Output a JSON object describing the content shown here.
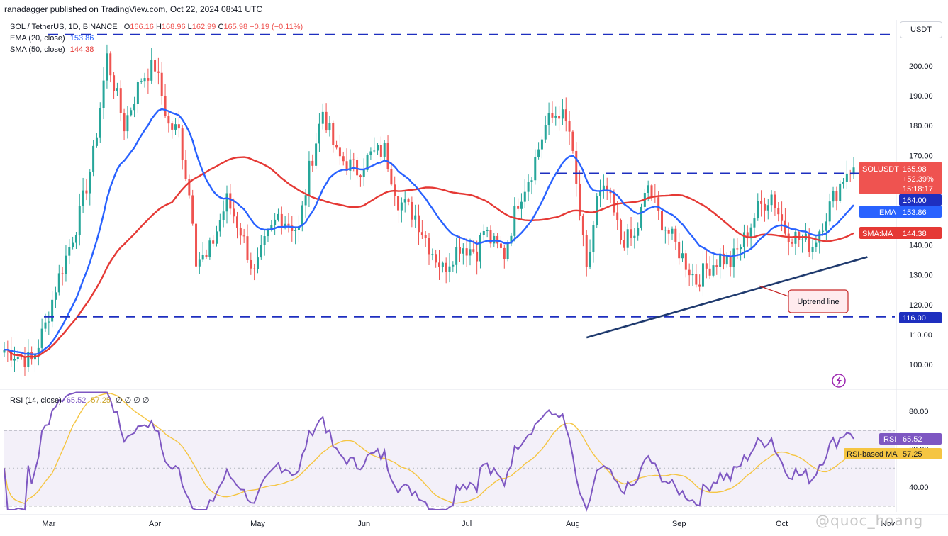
{
  "header": {
    "published_by": "ranadagger published on TradingView.com, Oct 22, 2024 08:41 UTC"
  },
  "legend": {
    "symbol": "SOL / TetherUS, 1D, BINANCE",
    "ohlc": {
      "o_label": "O",
      "o": "166.16",
      "h_label": "H",
      "h": "168.96",
      "l_label": "L",
      "l": "162.99",
      "c_label": "C",
      "c": "165.98",
      "change": "−0.19 (−0.11%)"
    },
    "ema": {
      "label": "EMA (20, close)",
      "value": "153.86"
    },
    "sma": {
      "label": "SMA (50, close)",
      "value": "144.38"
    },
    "rsi": {
      "label": "RSI (14, close)",
      "value": "65.52",
      "ma_value": "57.25",
      "tail": "∅ ∅ ∅ ∅"
    }
  },
  "currency_button": "USDT",
  "colors": {
    "up": "#26a69a",
    "down": "#ef5350",
    "ema": "#2962ff",
    "sma": "#e53935",
    "level": "#1e2fbf",
    "trend": "#1f3a6e",
    "rsi": "#7e57c2",
    "rsi_ma": "#f5c542",
    "axis_text": "#131722"
  },
  "chart_data": [
    {
      "type": "candlestick",
      "title": "SOL / TetherUS, 1D, BINANCE",
      "ylim": [
        95,
        210
      ],
      "y_ticks": [
        "100.00",
        "110.00",
        "120.00",
        "130.00",
        "140.00",
        "150.00",
        "160.00",
        "170.00",
        "180.00",
        "190.00",
        "200.00"
      ],
      "x_ticks": [
        "Mar",
        "Apr",
        "May",
        "Jun",
        "Jul",
        "Aug",
        "Sep",
        "Oct",
        "Nov"
      ],
      "x_range": [
        "2024-02-17",
        "2024-11-03"
      ],
      "start_date": "2024-02-17",
      "price_anchors": [
        [
          "2024-02-17",
          105
        ],
        [
          "2024-02-25",
          101
        ],
        [
          "2024-02-29",
          113
        ],
        [
          "2024-03-03",
          126
        ],
        [
          "2024-03-06",
          136
        ],
        [
          "2024-03-10",
          150
        ],
        [
          "2024-03-14",
          170
        ],
        [
          "2024-03-18",
          203
        ],
        [
          "2024-03-23",
          180
        ],
        [
          "2024-03-28",
          196
        ],
        [
          "2024-04-01",
          200
        ],
        [
          "2024-04-05",
          180
        ],
        [
          "2024-04-08",
          178
        ],
        [
          "2024-04-12",
          150
        ],
        [
          "2024-04-13",
          136
        ],
        [
          "2024-04-16",
          135
        ],
        [
          "2024-04-22",
          155
        ],
        [
          "2024-04-26",
          145
        ],
        [
          "2024-04-30",
          130
        ],
        [
          "2024-05-03",
          140
        ],
        [
          "2024-05-07",
          150
        ],
        [
          "2024-05-13",
          145
        ],
        [
          "2024-05-16",
          165
        ],
        [
          "2024-05-20",
          185
        ],
        [
          "2024-05-24",
          170
        ],
        [
          "2024-05-30",
          165
        ],
        [
          "2024-06-03",
          170
        ],
        [
          "2024-06-07",
          172
        ],
        [
          "2024-06-11",
          155
        ],
        [
          "2024-06-16",
          150
        ],
        [
          "2024-06-20",
          140
        ],
        [
          "2024-06-24",
          132
        ],
        [
          "2024-06-29",
          140
        ],
        [
          "2024-07-04",
          138
        ],
        [
          "2024-07-06",
          145
        ],
        [
          "2024-07-09",
          140
        ],
        [
          "2024-07-12",
          137
        ],
        [
          "2024-07-16",
          155
        ],
        [
          "2024-07-20",
          165
        ],
        [
          "2024-07-24",
          180
        ],
        [
          "2024-07-28",
          185
        ],
        [
          "2024-07-31",
          178
        ],
        [
          "2024-08-03",
          150
        ],
        [
          "2024-08-05",
          130
        ],
        [
          "2024-08-08",
          155
        ],
        [
          "2024-08-11",
          158
        ],
        [
          "2024-08-15",
          142
        ],
        [
          "2024-08-19",
          142
        ],
        [
          "2024-08-23",
          160
        ],
        [
          "2024-08-26",
          150
        ],
        [
          "2024-08-31",
          140
        ],
        [
          "2024-09-06",
          128
        ],
        [
          "2024-09-09",
          132
        ],
        [
          "2024-09-13",
          136
        ],
        [
          "2024-09-16",
          134
        ],
        [
          "2024-09-20",
          142
        ],
        [
          "2024-09-24",
          152
        ],
        [
          "2024-09-28",
          157
        ],
        [
          "2024-10-02",
          145
        ],
        [
          "2024-10-06",
          142
        ],
        [
          "2024-10-10",
          140
        ],
        [
          "2024-10-13",
          148
        ],
        [
          "2024-10-17",
          158
        ],
        [
          "2024-10-20",
          165
        ],
        [
          "2024-10-22",
          166
        ]
      ],
      "horizontal_levels": [
        {
          "value": 210.5,
          "label": ""
        },
        {
          "value": 164.0,
          "label": "164.00"
        },
        {
          "value": 116.0,
          "label": "116.00"
        }
      ],
      "trendline": {
        "label": "Uptrend line",
        "from": [
          "2024-08-05",
          109
        ],
        "to": [
          "2024-10-26",
          136
        ]
      },
      "series": [
        {
          "name": "SOLUSDT",
          "last": "165.98",
          "change_pct": "+52.39%",
          "countdown": "15:18:17"
        },
        {
          "name": "EMA",
          "last": "153.86"
        },
        {
          "name": "SMA:MA",
          "last": "144.38"
        }
      ]
    },
    {
      "type": "line",
      "title": "RSI (14, close)",
      "ylim": [
        25,
        92
      ],
      "y_ticks": [
        "40.00",
        "60.00",
        "80.00"
      ],
      "band": [
        30,
        70
      ],
      "series": [
        {
          "name": "RSI",
          "last": "65.52"
        },
        {
          "name": "RSI-based MA",
          "last": "57.25"
        }
      ]
    }
  ]
}
